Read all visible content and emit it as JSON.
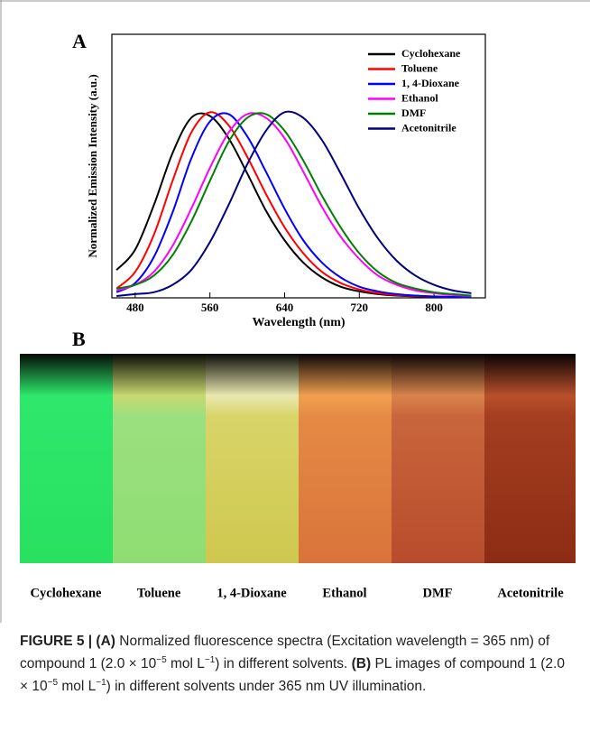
{
  "panel_labels": [
    "A",
    "B"
  ],
  "chart_data": {
    "type": "line",
    "x_label": "Wavelength (nm)",
    "y_label": "Normalized Emission Intensity (a.u.)",
    "x": [
      460,
      480,
      500,
      520,
      540,
      560,
      580,
      600,
      620,
      640,
      660,
      680,
      700,
      720,
      740,
      760,
      780,
      800,
      820,
      840
    ],
    "xlim": [
      455,
      855
    ],
    "xticks": [
      480,
      560,
      640,
      720,
      800
    ],
    "ylim": [
      0,
      1.42
    ],
    "legend": "upper right",
    "series": [
      {
        "name": "Cyclohexane",
        "color": "#000000",
        "values": [
          0.15,
          0.26,
          0.5,
          0.78,
          0.97,
          0.98,
          0.86,
          0.67,
          0.47,
          0.31,
          0.19,
          0.11,
          0.06,
          0.035,
          0.02,
          0.012,
          0.008,
          0.005,
          0.004,
          0.003
        ]
      },
      {
        "name": "Toluene",
        "color": "#ff0000",
        "values": [
          0.05,
          0.14,
          0.34,
          0.63,
          0.89,
          1.0,
          0.93,
          0.76,
          0.56,
          0.38,
          0.24,
          0.14,
          0.08,
          0.045,
          0.025,
          0.015,
          0.01,
          0.007,
          0.005,
          0.004
        ]
      },
      {
        "name": "1, 4-Dioxane",
        "color": "#0000ff",
        "values": [
          0.03,
          0.08,
          0.22,
          0.46,
          0.75,
          0.95,
          0.99,
          0.87,
          0.68,
          0.48,
          0.31,
          0.19,
          0.11,
          0.06,
          0.035,
          0.02,
          0.012,
          0.008,
          0.005,
          0.004
        ]
      },
      {
        "name": "Ethanol",
        "color": "#ff00ff",
        "values": [
          0.04,
          0.07,
          0.14,
          0.28,
          0.48,
          0.7,
          0.89,
          0.99,
          0.97,
          0.86,
          0.68,
          0.49,
          0.33,
          0.21,
          0.12,
          0.07,
          0.04,
          0.025,
          0.015,
          0.01
        ]
      },
      {
        "name": "DMF",
        "color": "#008000",
        "values": [
          0.05,
          0.07,
          0.12,
          0.23,
          0.41,
          0.63,
          0.84,
          0.97,
          0.99,
          0.9,
          0.74,
          0.55,
          0.38,
          0.24,
          0.14,
          0.08,
          0.05,
          0.03,
          0.02,
          0.012
        ]
      },
      {
        "name": "Acetonitrile",
        "color": "#000080",
        "values": [
          0.01,
          0.02,
          0.03,
          0.07,
          0.15,
          0.3,
          0.5,
          0.72,
          0.9,
          1.0,
          0.97,
          0.85,
          0.67,
          0.48,
          0.32,
          0.2,
          0.12,
          0.07,
          0.04,
          0.025
        ]
      }
    ]
  },
  "photo": {
    "labels": [
      "Cyclohexane",
      "Toluene",
      "1, 4-Dioxane",
      "Ethanol",
      "DMF",
      "Acetonitrile"
    ]
  },
  "caption": [
    "FIGURE 5 | (A)",
    " Normalized fluorescence spectra (Excitation wavelength = 365 nm) of compound 1 (2.0 × 10",
    "−5",
    " mol L",
    "−1",
    ") in different solvents. ",
    "(B)",
    " PL images of compound 1 (2.0 × 10",
    "−5",
    " mol L",
    "−1",
    ") in different solvents under 365 nm UV illumination."
  ]
}
